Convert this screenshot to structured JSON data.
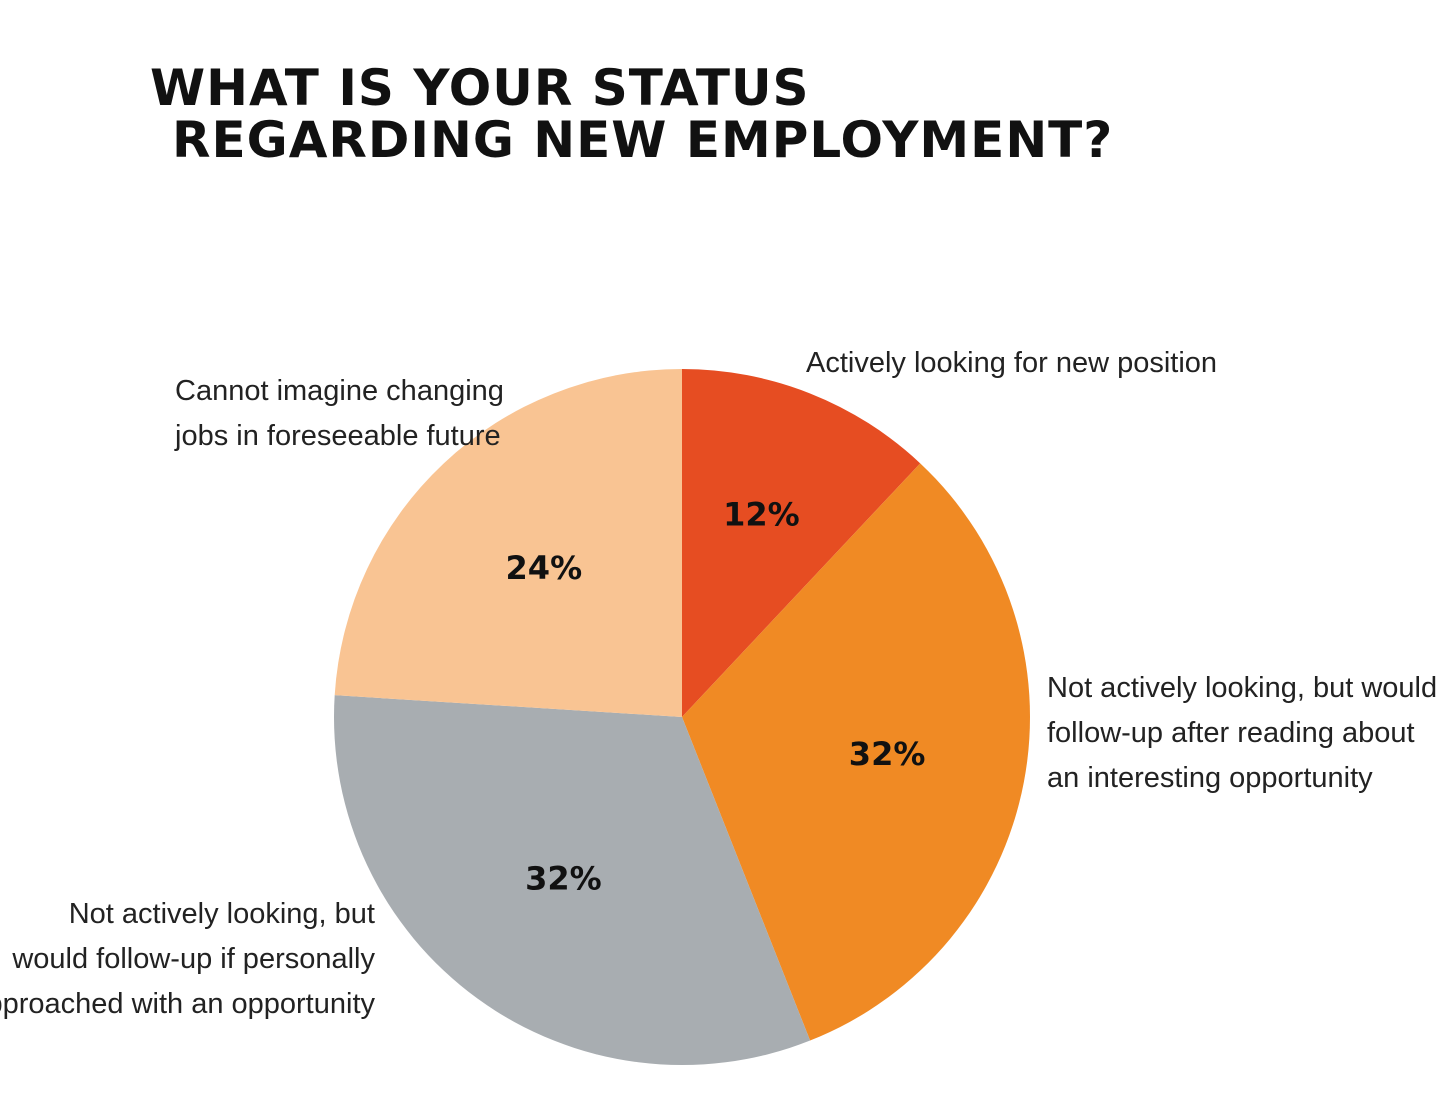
{
  "chart_data": {
    "type": "pie",
    "title_lines": [
      "WHAT IS YOUR STATUS",
      "REGARDING NEW EMPLOYMENT?"
    ],
    "slices": [
      {
        "label_lines": [
          "Actively looking for new position"
        ],
        "value": 12,
        "value_label": "12%",
        "color": "#e64d22"
      },
      {
        "label_lines": [
          "Not actively looking, but would",
          "follow-up after reading about",
          "an interesting opportunity"
        ],
        "value": 32,
        "value_label": "32%",
        "color": "#f08a24"
      },
      {
        "label_lines": [
          "Not actively looking, but",
          "would follow-up if personally",
          "approached with an opportunity"
        ],
        "value": 32,
        "value_label": "32%",
        "color": "#a8adb1"
      },
      {
        "label_lines": [
          "Cannot imagine changing",
          "jobs in foreseeable future"
        ],
        "value": 24,
        "value_label": "24%",
        "color": "#f9c493"
      }
    ]
  }
}
